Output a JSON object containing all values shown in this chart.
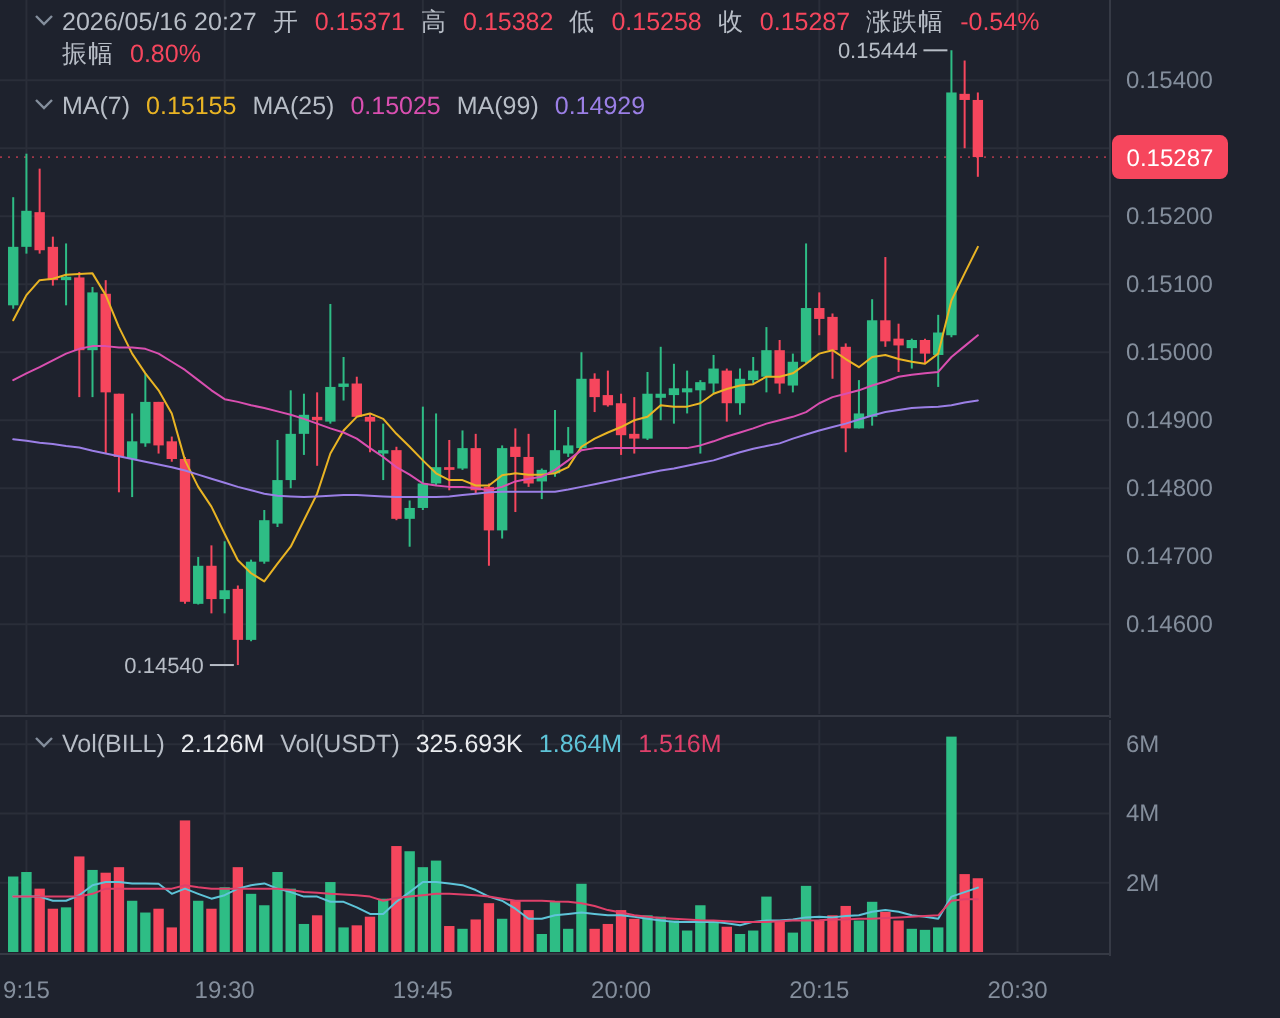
{
  "chart_data": [
    {
      "type": "candlestick",
      "title": "2026/05/16 20:27",
      "annotations": [
        "开",
        "0.15371",
        "高",
        "0.15382",
        "低",
        "0.15258",
        "收",
        "0.15287",
        "涨跌幅",
        "-0.54%",
        "振幅",
        "0.80%",
        "MA(7)",
        "MA(25)",
        "MA(99)",
        {
          "text": "0.15444",
          "x": "2026-05-16T20:25",
          "y": 0.15444
        },
        {
          "text": "0.14540",
          "x": "2026-05-16T19:31",
          "y": 0.1454
        }
      ],
      "x": [
        "2026-05-16T19:14",
        "2026-05-16T19:15",
        "2026-05-16T19:16",
        "2026-05-16T19:17",
        "2026-05-16T19:18",
        "2026-05-16T19:19",
        "2026-05-16T19:20",
        "2026-05-16T19:21",
        "2026-05-16T19:22",
        "2026-05-16T19:23",
        "2026-05-16T19:24",
        "2026-05-16T19:25",
        "2026-05-16T19:26",
        "2026-05-16T19:27",
        "2026-05-16T19:28",
        "2026-05-16T19:29",
        "2026-05-16T19:30",
        "2026-05-16T19:31",
        "2026-05-16T19:32",
        "2026-05-16T19:33",
        "2026-05-16T19:34",
        "2026-05-16T19:35",
        "2026-05-16T19:36",
        "2026-05-16T19:37",
        "2026-05-16T19:38",
        "2026-05-16T19:39",
        "2026-05-16T19:40",
        "2026-05-16T19:41",
        "2026-05-16T19:42",
        "2026-05-16T19:43",
        "2026-05-16T19:44",
        "2026-05-16T19:45",
        "2026-05-16T19:46",
        "2026-05-16T19:47",
        "2026-05-16T19:48",
        "2026-05-16T19:49",
        "2026-05-16T19:50",
        "2026-05-16T19:51",
        "2026-05-16T19:52",
        "2026-05-16T19:53",
        "2026-05-16T19:54",
        "2026-05-16T19:55",
        "2026-05-16T19:56",
        "2026-05-16T19:57",
        "2026-05-16T19:58",
        "2026-05-16T19:59",
        "2026-05-16T20:00",
        "2026-05-16T20:01",
        "2026-05-16T20:02",
        "2026-05-16T20:03",
        "2026-05-16T20:04",
        "2026-05-16T20:05",
        "2026-05-16T20:06",
        "2026-05-16T20:07",
        "2026-05-16T20:08",
        "2026-05-16T20:09",
        "2026-05-16T20:10",
        "2026-05-16T20:11",
        "2026-05-16T20:12",
        "2026-05-16T20:13",
        "2026-05-16T20:14",
        "2026-05-16T20:15",
        "2026-05-16T20:16",
        "2026-05-16T20:17",
        "2026-05-16T20:18",
        "2026-05-16T20:19",
        "2026-05-16T20:20",
        "2026-05-16T20:21",
        "2026-05-16T20:22",
        "2026-05-16T20:23",
        "2026-05-16T20:24",
        "2026-05-16T20:25",
        "2026-05-16T20:26",
        "2026-05-16T20:27"
      ],
      "ohlc": [
        [
          0.15069,
          0.15228,
          0.15064,
          0.15155
        ],
        [
          0.15155,
          0.15292,
          0.15145,
          0.15208
        ],
        [
          0.15206,
          0.1527,
          0.15145,
          0.1515
        ],
        [
          0.15155,
          0.1517,
          0.15098,
          0.15106
        ],
        [
          0.15106,
          0.1516,
          0.15069,
          0.15111
        ],
        [
          0.1511,
          0.15118,
          0.14934,
          0.15003
        ],
        [
          0.15003,
          0.15096,
          0.14934,
          0.15088
        ],
        [
          0.15086,
          0.15106,
          0.14851,
          0.14941
        ],
        [
          0.14939,
          0.14939,
          0.14794,
          0.14846
        ],
        [
          0.14843,
          0.1491,
          0.14787,
          0.14869
        ],
        [
          0.14866,
          0.14969,
          0.14861,
          0.14927
        ],
        [
          0.14927,
          0.14927,
          0.14851,
          0.14863
        ],
        [
          0.14869,
          0.14876,
          0.14839,
          0.14843
        ],
        [
          0.14843,
          0.14846,
          0.1463,
          0.14633
        ],
        [
          0.1463,
          0.14699,
          0.14629,
          0.14686
        ],
        [
          0.14686,
          0.14716,
          0.14616,
          0.14637
        ],
        [
          0.14637,
          0.14722,
          0.14616,
          0.1465
        ],
        [
          0.14652,
          0.14657,
          0.1454,
          0.14577
        ],
        [
          0.14577,
          0.14695,
          0.14575,
          0.14692
        ],
        [
          0.14692,
          0.14768,
          0.14689,
          0.14753
        ],
        [
          0.14748,
          0.14871,
          0.14743,
          0.14812
        ],
        [
          0.14812,
          0.14944,
          0.148,
          0.1488
        ],
        [
          0.1488,
          0.14939,
          0.14849,
          0.14908
        ],
        [
          0.14905,
          0.14941,
          0.14833,
          0.149
        ],
        [
          0.14898,
          0.15071,
          0.14895,
          0.14949
        ],
        [
          0.14949,
          0.14993,
          0.14929,
          0.14954
        ],
        [
          0.14954,
          0.14964,
          0.14905,
          0.14905
        ],
        [
          0.14905,
          0.1491,
          0.14853,
          0.14898
        ],
        [
          0.14851,
          0.14895,
          0.14812,
          0.14856
        ],
        [
          0.14856,
          0.14861,
          0.14753,
          0.14755
        ],
        [
          0.14755,
          0.14782,
          0.14714,
          0.14771
        ],
        [
          0.14771,
          0.1492,
          0.14768,
          0.14807
        ],
        [
          0.14807,
          0.1491,
          0.14804,
          0.14831
        ],
        [
          0.14831,
          0.14871,
          0.14797,
          0.14827
        ],
        [
          0.14829,
          0.14885,
          0.14827,
          0.14859
        ],
        [
          0.14859,
          0.1488,
          0.14792,
          0.14797
        ],
        [
          0.14802,
          0.14807,
          0.14686,
          0.14738
        ],
        [
          0.14738,
          0.14863,
          0.14726,
          0.14859
        ],
        [
          0.14861,
          0.14888,
          0.14765,
          0.14846
        ],
        [
          0.14846,
          0.1488,
          0.14802,
          0.14807
        ],
        [
          0.1481,
          0.14829,
          0.14784,
          0.14827
        ],
        [
          0.14822,
          0.14915,
          0.14817,
          0.14856
        ],
        [
          0.14851,
          0.1489,
          0.14846,
          0.14863
        ],
        [
          0.14859,
          0.15,
          0.14856,
          0.14961
        ],
        [
          0.14961,
          0.14969,
          0.14912,
          0.14934
        ],
        [
          0.14937,
          0.14973,
          0.1492,
          0.14922
        ],
        [
          0.14925,
          0.14939,
          0.14849,
          0.14878
        ],
        [
          0.1488,
          0.14934,
          0.14851,
          0.14873
        ],
        [
          0.14873,
          0.14971,
          0.14871,
          0.14939
        ],
        [
          0.14933,
          0.15008,
          0.149,
          0.14939
        ],
        [
          0.14937,
          0.14983,
          0.14895,
          0.14947
        ],
        [
          0.14941,
          0.14973,
          0.1491,
          0.14947
        ],
        [
          0.14944,
          0.14959,
          0.14851,
          0.14956
        ],
        [
          0.14954,
          0.14996,
          0.14939,
          0.14976
        ],
        [
          0.14973,
          0.14976,
          0.14898,
          0.14925
        ],
        [
          0.14925,
          0.14976,
          0.14908,
          0.14961
        ],
        [
          0.14959,
          0.14993,
          0.14954,
          0.14973
        ],
        [
          0.14964,
          0.15037,
          0.14941,
          0.15003
        ],
        [
          0.15003,
          0.15018,
          0.14939,
          0.14954
        ],
        [
          0.14951,
          0.14998,
          0.14941,
          0.14986
        ],
        [
          0.14986,
          0.1516,
          0.14983,
          0.15065
        ],
        [
          0.15065,
          0.15088,
          0.15025,
          0.15049
        ],
        [
          0.15052,
          0.15057,
          0.14961,
          0.15003
        ],
        [
          0.15008,
          0.15013,
          0.14853,
          0.14888
        ],
        [
          0.14888,
          0.14959,
          0.14888,
          0.1491
        ],
        [
          0.14905,
          0.15078,
          0.14892,
          0.15047
        ],
        [
          0.15047,
          0.1514,
          0.15008,
          0.15016
        ],
        [
          0.1502,
          0.15042,
          0.14971,
          0.1501
        ],
        [
          0.15006,
          0.1502,
          0.14976,
          0.15018
        ],
        [
          0.15018,
          0.1502,
          0.14983,
          0.14998
        ],
        [
          0.14996,
          0.15055,
          0.14949,
          0.15029
        ],
        [
          0.15025,
          0.15444,
          0.15022,
          0.15382
        ],
        [
          0.1538,
          0.15429,
          0.153,
          0.15371
        ],
        [
          0.15371,
          0.15382,
          0.15258,
          0.15287
        ]
      ],
      "colors": [
        "#2ebd85",
        "#2ebd85",
        "#f6465d",
        "#f6465d",
        "#2ebd85",
        "#f6465d",
        "#2ebd85",
        "#f6465d",
        "#f6465d",
        "#2ebd85",
        "#2ebd85",
        "#f6465d",
        "#f6465d",
        "#f6465d",
        "#2ebd85",
        "#f6465d",
        "#2ebd85",
        "#f6465d",
        "#2ebd85",
        "#2ebd85",
        "#2ebd85",
        "#2ebd85",
        "#2ebd85",
        "#f6465d",
        "#2ebd85",
        "#2ebd85",
        "#f6465d",
        "#f6465d",
        "#2ebd85",
        "#f6465d",
        "#2ebd85",
        "#2ebd85",
        "#2ebd85",
        "#f6465d",
        "#2ebd85",
        "#f6465d",
        "#f6465d",
        "#2ebd85",
        "#f6465d",
        "#f6465d",
        "#2ebd85",
        "#2ebd85",
        "#2ebd85",
        "#2ebd85",
        "#f6465d",
        "#f6465d",
        "#f6465d",
        "#f6465d",
        "#2ebd85",
        "#2ebd85",
        "#2ebd85",
        "#2ebd85",
        "#2ebd85",
        "#2ebd85",
        "#f6465d",
        "#2ebd85",
        "#2ebd85",
        "#2ebd85",
        "#f6465d",
        "#2ebd85",
        "#2ebd85",
        "#f6465d",
        "#f6465d",
        "#f6465d",
        "#2ebd85",
        "#2ebd85",
        "#f6465d",
        "#f6465d",
        "#2ebd85",
        "#f6465d",
        "#2ebd85",
        "#2ebd85",
        "#f6465d",
        "#f6465d"
      ],
      "series": [
        {
          "name": "0.15155",
          "type": "line",
          "color": "#e9b424",
          "values": [
            0.15047,
            0.15084,
            0.15106,
            0.15108,
            0.15114,
            0.15115,
            0.15116,
            0.15084,
            0.15037,
            0.14998,
            0.14969,
            0.14944,
            0.1491,
            0.14841,
            0.14802,
            0.14773,
            0.14733,
            0.14694,
            0.14675,
            0.14663,
            0.14689,
            0.14714,
            0.14753,
            0.14792,
            0.14851,
            0.14885,
            0.14905,
            0.1491,
            0.14902,
            0.1488,
            0.14861,
            0.14841,
            0.14822,
            0.14812,
            0.14812,
            0.14804,
            0.14804,
            0.14819,
            0.14822,
            0.1482,
            0.1482,
            0.14822,
            0.14831,
            0.14861,
            0.14873,
            0.14882,
            0.1489,
            0.149,
            0.14905,
            0.14922,
            0.1492,
            0.1492,
            0.14925,
            0.14939,
            0.14946,
            0.14951,
            0.14953,
            0.14964,
            0.14964,
            0.14969,
            0.14983,
            0.14998,
            0.15003,
            0.1499,
            0.14978,
            0.14993,
            0.14996,
            0.1499,
            0.14986,
            0.14983,
            0.14998,
            0.15076,
            0.15116,
            0.15155
          ]
        },
        {
          "name": "0.15025",
          "type": "line",
          "color": "#d94fb0",
          "values": [
            0.14959,
            0.14969,
            0.14978,
            0.14988,
            0.14998,
            0.15005,
            0.15009,
            0.15009,
            0.15007,
            0.15007,
            0.15005,
            0.14998,
            0.14986,
            0.14974,
            0.14959,
            0.14944,
            0.14931,
            0.14927,
            0.14922,
            0.14918,
            0.14913,
            0.14908,
            0.14902,
            0.14895,
            0.14888,
            0.14882,
            0.14873,
            0.14859,
            0.14846,
            0.14831,
            0.1482,
            0.14807,
            0.14804,
            0.14802,
            0.14802,
            0.148,
            0.14797,
            0.14802,
            0.1481,
            0.14814,
            0.14817,
            0.14827,
            0.14841,
            0.14856,
            0.14859,
            0.14859,
            0.14859,
            0.14859,
            0.14859,
            0.14859,
            0.14859,
            0.14859,
            0.14863,
            0.14869,
            0.14876,
            0.14882,
            0.14888,
            0.14895,
            0.149,
            0.14905,
            0.14912,
            0.14925,
            0.14934,
            0.14939,
            0.14944,
            0.14951,
            0.14957,
            0.14964,
            0.14967,
            0.14969,
            0.14971,
            0.14993,
            0.15009,
            0.15025
          ]
        },
        {
          "name": "0.14929",
          "type": "line",
          "color": "#9b7fe6",
          "values": [
            0.14872,
            0.1487,
            0.14867,
            0.14865,
            0.14862,
            0.1486,
            0.14855,
            0.14851,
            0.14847,
            0.14843,
            0.14839,
            0.14835,
            0.14831,
            0.14826,
            0.1482,
            0.14814,
            0.14808,
            0.14802,
            0.14797,
            0.14792,
            0.14789,
            0.14788,
            0.14787,
            0.14788,
            0.14789,
            0.1479,
            0.1479,
            0.14789,
            0.14788,
            0.14787,
            0.14787,
            0.14787,
            0.14787,
            0.14788,
            0.1479,
            0.14792,
            0.14794,
            0.14795,
            0.14795,
            0.14795,
            0.14795,
            0.14795,
            0.14798,
            0.14802,
            0.14806,
            0.1481,
            0.14814,
            0.14818,
            0.14822,
            0.14826,
            0.14829,
            0.14833,
            0.14837,
            0.14841,
            0.14847,
            0.14853,
            0.14858,
            0.14862,
            0.14866,
            0.14873,
            0.14879,
            0.14885,
            0.1489,
            0.14895,
            0.14901,
            0.14907,
            0.14912,
            0.14915,
            0.14918,
            0.14919,
            0.1492,
            0.14922,
            0.14926,
            0.14929
          ]
        }
      ],
      "ref_lines": [
        {
          "axis": "y",
          "value": 0.15287,
          "label": "0.15287",
          "color": "#f6465d",
          "line_style": "dotted"
        }
      ],
      "xlim": [
        "2026-05-16T19:13",
        "2026-05-16T20:37"
      ],
      "xticks": [
        {
          "value": "2026-05-16T19:15",
          "label": null
        },
        {
          "value": "2026-05-16T19:30",
          "label": null
        },
        {
          "value": "2026-05-16T19:45",
          "label": null
        },
        {
          "value": "2026-05-16T20:00",
          "label": null
        },
        {
          "value": "2026-05-16T20:15",
          "label": null
        },
        {
          "value": "2026-05-16T20:30",
          "label": null
        }
      ],
      "ylim": [
        0.14468,
        0.15518
      ],
      "yticks": [
        {
          "value": 0.146,
          "label": "0.14600"
        },
        {
          "value": 0.147,
          "label": "0.14700"
        },
        {
          "value": 0.148,
          "label": "0.14800"
        },
        {
          "value": 0.149,
          "label": "0.14900"
        },
        {
          "value": 0.15,
          "label": "0.15000"
        },
        {
          "value": 0.151,
          "label": "0.15100"
        },
        {
          "value": 0.152,
          "label": "0.15200"
        },
        {
          "value": 0.153,
          "label": null
        },
        {
          "value": 0.154,
          "label": "0.15400"
        }
      ],
      "grid": true,
      "legend": "top",
      "tick_labels": "y"
    },
    {
      "type": "bar",
      "annotations": [
        "Vol(BILL)",
        "2.126M",
        "Vol(USDT)",
        "325.693K"
      ],
      "x": [
        "2026-05-16T19:14",
        "2026-05-16T19:15",
        "2026-05-16T19:16",
        "2026-05-16T19:17",
        "2026-05-16T19:18",
        "2026-05-16T19:19",
        "2026-05-16T19:20",
        "2026-05-16T19:21",
        "2026-05-16T19:22",
        "2026-05-16T19:23",
        "2026-05-16T19:24",
        "2026-05-16T19:25",
        "2026-05-16T19:26",
        "2026-05-16T19:27",
        "2026-05-16T19:28",
        "2026-05-16T19:29",
        "2026-05-16T19:30",
        "2026-05-16T19:31",
        "2026-05-16T19:32",
        "2026-05-16T19:33",
        "2026-05-16T19:34",
        "2026-05-16T19:35",
        "2026-05-16T19:36",
        "2026-05-16T19:37",
        "2026-05-16T19:38",
        "2026-05-16T19:39",
        "2026-05-16T19:40",
        "2026-05-16T19:41",
        "2026-05-16T19:42",
        "2026-05-16T19:43",
        "2026-05-16T19:44",
        "2026-05-16T19:45",
        "2026-05-16T19:46",
        "2026-05-16T19:47",
        "2026-05-16T19:48",
        "2026-05-16T19:49",
        "2026-05-16T19:50",
        "2026-05-16T19:51",
        "2026-05-16T19:52",
        "2026-05-16T19:53",
        "2026-05-16T19:54",
        "2026-05-16T19:55",
        "2026-05-16T19:56",
        "2026-05-16T19:57",
        "2026-05-16T19:58",
        "2026-05-16T19:59",
        "2026-05-16T20:00",
        "2026-05-16T20:01",
        "2026-05-16T20:02",
        "2026-05-16T20:03",
        "2026-05-16T20:04",
        "2026-05-16T20:05",
        "2026-05-16T20:06",
        "2026-05-16T20:07",
        "2026-05-16T20:08",
        "2026-05-16T20:09",
        "2026-05-16T20:10",
        "2026-05-16T20:11",
        "2026-05-16T20:12",
        "2026-05-16T20:13",
        "2026-05-16T20:14",
        "2026-05-16T20:15",
        "2026-05-16T20:16",
        "2026-05-16T20:17",
        "2026-05-16T20:18",
        "2026-05-16T20:19",
        "2026-05-16T20:20",
        "2026-05-16T20:21",
        "2026-05-16T20:22",
        "2026-05-16T20:23",
        "2026-05-16T20:24",
        "2026-05-16T20:25",
        "2026-05-16T20:26",
        "2026-05-16T20:27"
      ],
      "values": [
        2.18,
        2.31,
        1.83,
        1.25,
        1.29,
        2.76,
        2.37,
        2.29,
        2.45,
        1.48,
        1.14,
        1.25,
        0.71,
        3.8,
        1.48,
        1.25,
        1.87,
        2.45,
        1.68,
        1.35,
        2.31,
        1.83,
        0.81,
        1.06,
        2.02,
        0.71,
        0.77,
        1.02,
        1.54,
        3.06,
        2.91,
        2.45,
        2.64,
        0.75,
        0.67,
        0.94,
        1.41,
        0.96,
        1.48,
        1.21,
        0.52,
        1.45,
        0.67,
        1.97,
        0.67,
        0.81,
        1.21,
        0.96,
        1.06,
        1.02,
        0.91,
        0.62,
        1.35,
        0.91,
        0.73,
        0.52,
        0.62,
        1.6,
        0.87,
        0.56,
        1.91,
        0.91,
        1.06,
        1.33,
        0.91,
        1.45,
        1.16,
        0.91,
        0.67,
        0.64,
        0.71,
        6.22,
        2.25,
        2.13
      ],
      "colors": [
        "#2ebd85",
        "#2ebd85",
        "#f6465d",
        "#f6465d",
        "#2ebd85",
        "#f6465d",
        "#2ebd85",
        "#f6465d",
        "#f6465d",
        "#2ebd85",
        "#2ebd85",
        "#f6465d",
        "#f6465d",
        "#f6465d",
        "#2ebd85",
        "#f6465d",
        "#2ebd85",
        "#f6465d",
        "#2ebd85",
        "#2ebd85",
        "#2ebd85",
        "#2ebd85",
        "#2ebd85",
        "#f6465d",
        "#2ebd85",
        "#2ebd85",
        "#f6465d",
        "#f6465d",
        "#2ebd85",
        "#f6465d",
        "#2ebd85",
        "#2ebd85",
        "#2ebd85",
        "#f6465d",
        "#2ebd85",
        "#f6465d",
        "#f6465d",
        "#2ebd85",
        "#f6465d",
        "#f6465d",
        "#2ebd85",
        "#2ebd85",
        "#2ebd85",
        "#2ebd85",
        "#f6465d",
        "#f6465d",
        "#f6465d",
        "#f6465d",
        "#2ebd85",
        "#2ebd85",
        "#2ebd85",
        "#2ebd85",
        "#2ebd85",
        "#2ebd85",
        "#f6465d",
        "#2ebd85",
        "#2ebd85",
        "#2ebd85",
        "#f6465d",
        "#2ebd85",
        "#2ebd85",
        "#f6465d",
        "#f6465d",
        "#f6465d",
        "#2ebd85",
        "#2ebd85",
        "#f6465d",
        "#f6465d",
        "#2ebd85",
        "#2ebd85",
        "#2ebd85",
        "#2ebd85",
        "#f6465d",
        "#f6465d"
      ],
      "series": [
        {
          "name": "1.864M",
          "type": "line",
          "color": "#5ec4d8",
          "values": [
            1.6,
            1.6,
            1.6,
            1.48,
            1.48,
            1.64,
            1.93,
            2.02,
            2.02,
            1.98,
            1.98,
            1.97,
            1.68,
            1.83,
            1.68,
            1.54,
            1.64,
            1.83,
            1.93,
            1.98,
            1.83,
            1.73,
            1.6,
            1.6,
            1.45,
            1.45,
            1.29,
            1.1,
            1.1,
            1.45,
            1.73,
            2.02,
            2.02,
            1.98,
            1.93,
            1.79,
            1.6,
            1.48,
            1.25,
            0.96,
            0.96,
            1.06,
            1.1,
            1.14,
            1.1,
            1.06,
            1.06,
            1.02,
            0.96,
            0.91,
            0.87,
            0.87,
            0.87,
            0.87,
            0.83,
            0.77,
            0.87,
            0.91,
            0.91,
            0.94,
            1.0,
            1.02,
            1.0,
            1.04,
            1.06,
            1.16,
            1.21,
            1.16,
            1.06,
            1.02,
            0.96,
            1.6,
            1.73,
            1.86
          ]
        },
        {
          "name": "1.516M",
          "type": "line",
          "color": "#e0406a",
          "values": [
            1.6,
            1.6,
            1.6,
            1.6,
            1.6,
            1.6,
            1.68,
            1.83,
            1.83,
            1.83,
            1.83,
            1.83,
            1.83,
            1.93,
            1.87,
            1.83,
            1.83,
            1.83,
            1.83,
            1.83,
            1.83,
            1.79,
            1.73,
            1.71,
            1.68,
            1.66,
            1.64,
            1.6,
            1.48,
            1.56,
            1.6,
            1.64,
            1.68,
            1.68,
            1.66,
            1.64,
            1.6,
            1.54,
            1.48,
            1.48,
            1.48,
            1.46,
            1.45,
            1.41,
            1.33,
            1.21,
            1.14,
            1.06,
            1.02,
            0.98,
            0.96,
            0.94,
            0.92,
            0.91,
            0.89,
            0.87,
            0.87,
            0.87,
            0.89,
            0.91,
            0.91,
            0.92,
            0.94,
            0.94,
            0.96,
            0.96,
            0.98,
            1.0,
            1.02,
            1.04,
            1.06,
            1.48,
            1.52,
            1.52
          ]
        }
      ],
      "xlim": [
        "2026-05-16T19:13",
        "2026-05-16T20:37"
      ],
      "xticks": [
        {
          "value": "2026-05-16T19:15",
          "label": "9:15"
        },
        {
          "value": "2026-05-16T19:30",
          "label": "19:30"
        },
        {
          "value": "2026-05-16T19:45",
          "label": "19:45"
        },
        {
          "value": "2026-05-16T20:00",
          "label": "20:00"
        },
        {
          "value": "2026-05-16T20:15",
          "label": "20:15"
        },
        {
          "value": "2026-05-16T20:30",
          "label": "20:30"
        }
      ],
      "ylim": [
        0,
        6.7
      ],
      "yticks": [
        {
          "value": 2,
          "label": "2M"
        },
        {
          "value": 4,
          "label": "4M"
        },
        {
          "value": 6,
          "label": "6M"
        }
      ],
      "grid": true,
      "legend": "top"
    }
  ]
}
